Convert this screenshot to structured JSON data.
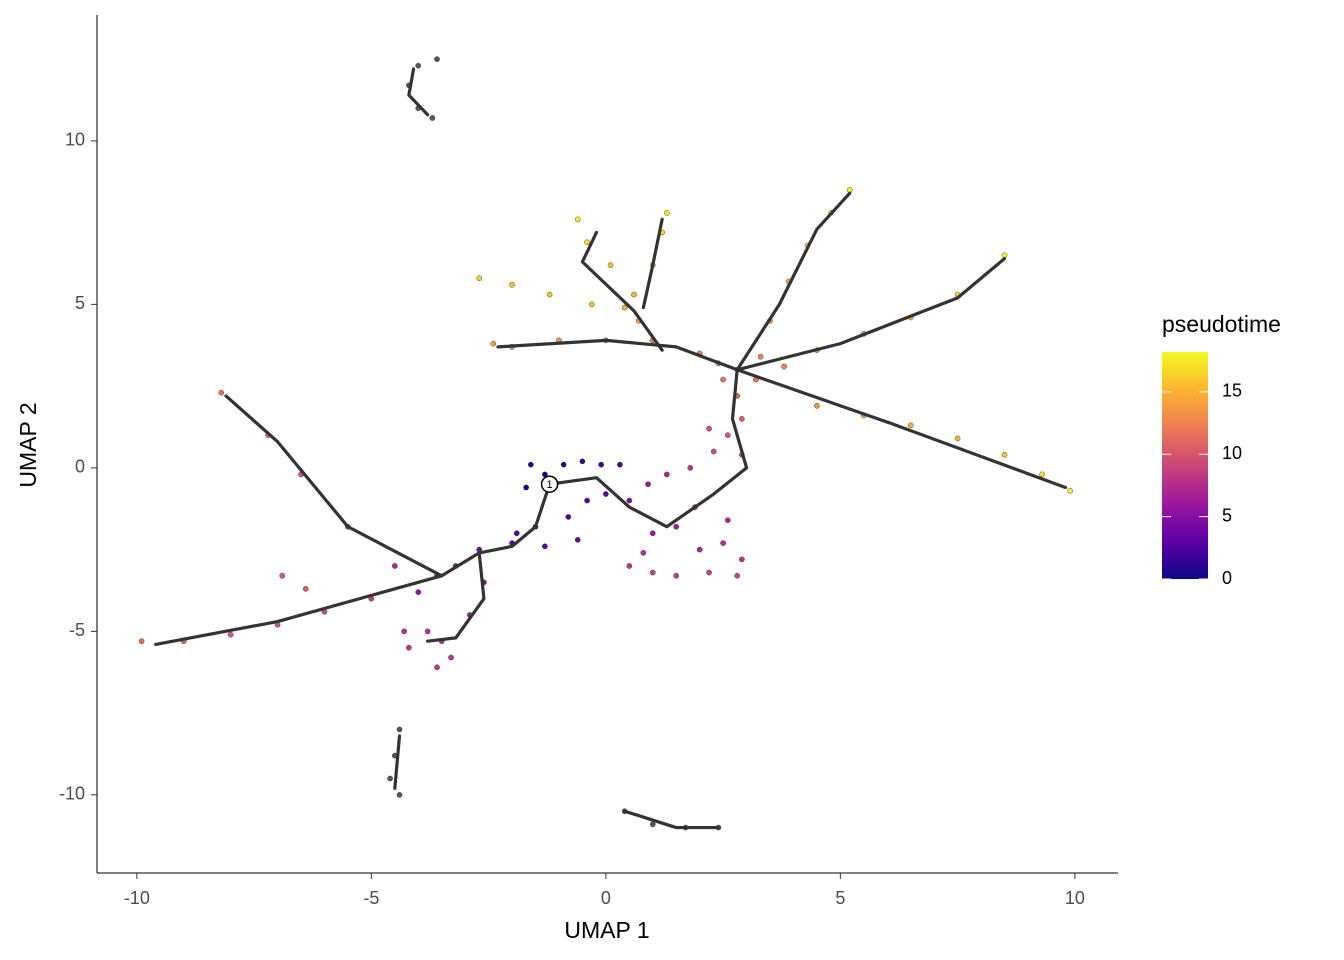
{
  "chart_data": {
    "type": "scatter",
    "xlabel": "UMAP 1",
    "ylabel": "UMAP 2",
    "xlim": [
      -10.85,
      10.92
    ],
    "ylim": [
      -12.39,
      13.85
    ],
    "xticks": [
      -10,
      -5,
      0,
      5,
      10
    ],
    "yticks": [
      -10,
      -5,
      0,
      5,
      10
    ],
    "legend_title": "pseudotime",
    "clim": [
      0,
      18.2
    ],
    "cticks": [
      0,
      5,
      10,
      15
    ],
    "colorscale": [
      "#0d0887",
      "#5c01a6",
      "#9c179e",
      "#cc4778",
      "#ed7953",
      "#fdb42f",
      "#f0f921"
    ],
    "missing_color": "#555555",
    "trajectory_color": "#333333",
    "x": [
      -1.2,
      -1.6,
      -1.3,
      -0.9,
      -0.5,
      -0.1,
      0.3,
      -1.7,
      -1.5,
      -1.3,
      -0.8,
      -0.4,
      0,
      -0.6,
      -1.9,
      0.5,
      0.9,
      1.3,
      1.8,
      1,
      1.5,
      2,
      2.5,
      2.9,
      0.5,
      1,
      1.5,
      2.2,
      2.8,
      0.8,
      1.9,
      2.6,
      2.3,
      2.6,
      2.9,
      2.2,
      2.9,
      2.8,
      2.8,
      2.4,
      3.2,
      3.3,
      2.5,
      2,
      3.8,
      4.5,
      5.5,
      6.5,
      7.5,
      8.5,
      9.3,
      9.9,
      4.5,
      5.5,
      6.5,
      7.5,
      8.5,
      3.5,
      3.9,
      4.3,
      4.8,
      5.2,
      1,
      0,
      -1,
      -2,
      -2.4,
      0.7,
      0.6,
      1.0,
      1.2,
      1.3,
      0.1,
      -0.4,
      -0.6,
      -2.7,
      -2,
      -1.2,
      -0.3,
      0.4,
      -2,
      -2.7,
      -3.2,
      -3.6,
      -2.6,
      -2.9,
      -4,
      -3.5,
      -4.2,
      -3.8,
      -3.3,
      -4.3,
      -3.6,
      -5,
      -6,
      -7,
      -8,
      -9,
      -9.9,
      -4.5,
      -5.5,
      -6.5,
      -7.2,
      -8.2,
      -6.9,
      -6.4,
      -4,
      -4.2,
      -4,
      -3.7,
      -3.6,
      -4.4,
      -4.5,
      -4.6,
      -4.4,
      0.4,
      1,
      1.7,
      2.4
    ],
    "y": [
      -0.5,
      0.1,
      -0.2,
      0.1,
      0.2,
      0.1,
      0.1,
      -0.6,
      -1.8,
      -2.4,
      -1.5,
      -1,
      -0.8,
      -2.2,
      -2,
      -1,
      -0.5,
      -0.2,
      0,
      -2,
      -1.8,
      -2.5,
      -2.3,
      -2.8,
      -3,
      -3.2,
      -3.3,
      -3.2,
      -3.3,
      -2.6,
      -1.2,
      -1.6,
      0.5,
      1,
      1.5,
      1.2,
      0.4,
      2.2,
      3,
      3.2,
      2.7,
      3.4,
      2.7,
      3.5,
      3.1,
      1.9,
      1.6,
      1.3,
      0.9,
      0.4,
      -0.2,
      -0.7,
      3.6,
      4.1,
      4.6,
      5.3,
      6.5,
      4.5,
      5.7,
      6.8,
      7.8,
      8.5,
      3.9,
      3.9,
      3.9,
      3.7,
      3.8,
      4.5,
      5.3,
      6.2,
      7.2,
      7.8,
      6.2,
      6.9,
      7.6,
      5.8,
      5.6,
      5.3,
      5,
      4.9,
      -2.3,
      -2.5,
      -3,
      -3.3,
      -3.5,
      -4.5,
      -3.8,
      -5.3,
      -5.5,
      -5,
      -5.8,
      -5,
      -6.1,
      -4,
      -4.4,
      -4.8,
      -5.1,
      -5.3,
      -5.3,
      -3,
      -1.8,
      -0.2,
      1,
      2.3,
      -3.3,
      -3.7,
      12.3,
      11.7,
      11,
      10.7,
      12.5,
      -8,
      -8.8,
      -9.5,
      -10,
      -10.5,
      -10.9,
      -11,
      -11
    ],
    "pseudotime": [
      0,
      0.5,
      0.3,
      1,
      1.5,
      2,
      2.5,
      0.6,
      2.5,
      3,
      2.5,
      2.8,
      3,
      3.5,
      3,
      5,
      6,
      7,
      8,
      6,
      6.5,
      7,
      7.5,
      8,
      8,
      8.5,
      8.5,
      9,
      9,
      7.5,
      6.5,
      7,
      9.5,
      10,
      10.5,
      10,
      9.8,
      11,
      12,
      12,
      12.2,
      12.5,
      11.8,
      12,
      12.5,
      13.5,
      14,
      14.5,
      15,
      16,
      17,
      17.5,
      13.5,
      14.5,
      15.5,
      16.5,
      18,
      13.5,
      14.5,
      16,
      17,
      18,
      12.3,
      12.8,
      13.2,
      13.8,
      14,
      14,
      15,
      15.5,
      16.5,
      17.5,
      16,
      17,
      17.8,
      16,
      16,
      15.8,
      15.5,
      15,
      3.5,
      4,
      4.5,
      5,
      5,
      6,
      5.5,
      7.5,
      8,
      7.5,
      8,
      7.8,
      8.2,
      8.5,
      9.5,
      10,
      10.5,
      11,
      11.5,
      7,
      8.5,
      10,
      11,
      12,
      10,
      10.5,
      null,
      null,
      null,
      null,
      null,
      null,
      null,
      null,
      null,
      null,
      null,
      null,
      null
    ],
    "trajectories": [
      {
        "x": [
          -1.2,
          -1.5,
          -2,
          -2.7,
          -3.5,
          -5,
          -7,
          -9.6
        ],
        "y": [
          -0.5,
          -1.8,
          -2.4,
          -2.6,
          -3.3,
          -3.9,
          -4.7,
          -5.4
        ]
      },
      {
        "x": [
          -2.7,
          -2.6,
          -3.2,
          -3.8
        ],
        "y": [
          -2.6,
          -4,
          -5.2,
          -5.3
        ]
      },
      {
        "x": [
          -3.5,
          -5.5,
          -7,
          -8.1
        ],
        "y": [
          -3.3,
          -1.8,
          0.8,
          2.2
        ]
      },
      {
        "x": [
          -1.2,
          -0.2,
          0.5,
          1.3,
          2.3,
          3,
          2.7,
          2.8
        ],
        "y": [
          -0.5,
          -0.3,
          -1.2,
          -1.8,
          -0.8,
          0,
          1.5,
          3
        ]
      },
      {
        "x": [
          2.8,
          6,
          9.8
        ],
        "y": [
          3,
          1.4,
          -0.6
        ]
      },
      {
        "x": [
          2.8,
          5,
          7.5,
          8.5
        ],
        "y": [
          3,
          3.8,
          5.2,
          6.4
        ]
      },
      {
        "x": [
          2.8,
          3.7,
          4.5,
          5.2
        ],
        "y": [
          3,
          5,
          7.3,
          8.4
        ]
      },
      {
        "x": [
          2.8,
          1.5,
          0,
          -2.3
        ],
        "y": [
          3,
          3.7,
          3.9,
          3.7
        ]
      },
      {
        "x": [
          1.2,
          0.6,
          -0.5,
          -0.2
        ],
        "y": [
          3.6,
          4.8,
          6.3,
          7.2
        ]
      },
      {
        "x": [
          0.8,
          1.0,
          1.2
        ],
        "y": [
          4.9,
          6.2,
          7.6
        ]
      },
      {
        "x": [
          -4.1,
          -4.2,
          -3.8
        ],
        "y": [
          12.2,
          11.4,
          10.8
        ]
      },
      {
        "x": [
          -4.4,
          -4.5
        ],
        "y": [
          -8.2,
          -9.8
        ]
      },
      {
        "x": [
          0.4,
          1.5,
          2.4
        ],
        "y": [
          -10.5,
          -11,
          -11
        ]
      }
    ],
    "root": {
      "x": -1.2,
      "y": -0.5,
      "label": "1"
    }
  }
}
